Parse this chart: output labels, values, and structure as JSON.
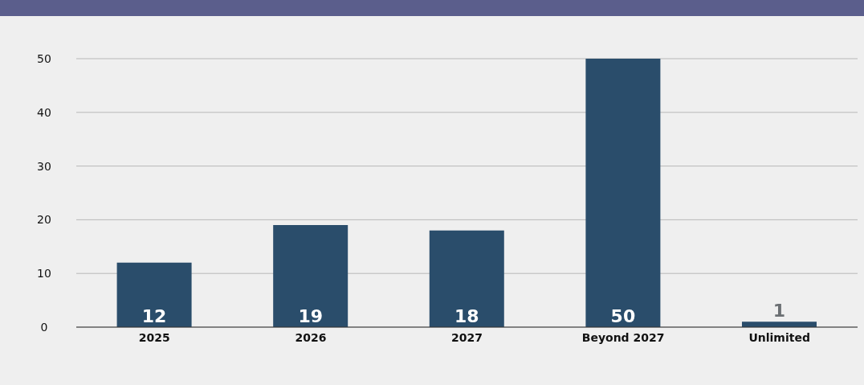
{
  "chart_data": {
    "type": "bar",
    "categories": [
      "2025",
      "2026",
      "2027",
      "Beyond 2027",
      "Unlimited"
    ],
    "values": [
      12,
      19,
      18,
      50,
      1
    ],
    "color": "#2a4d6b",
    "ylim": [
      0,
      50
    ],
    "yticks": [
      0,
      10,
      20,
      30,
      40,
      50
    ],
    "grid": "y",
    "data_labels": true
  }
}
